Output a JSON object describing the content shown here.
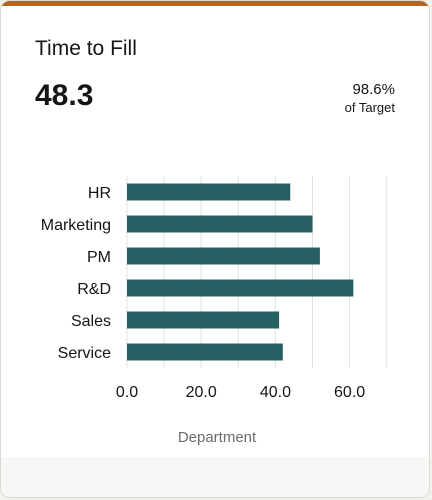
{
  "card": {
    "title": "Time to Fill",
    "metric_value": "48.3",
    "target_percent": "98.6%",
    "target_label": "of Target"
  },
  "colors": {
    "accent": "#b4641f",
    "bar": "#255f63",
    "text": "#161513",
    "axis_title": "#6f6b66"
  },
  "chart_data": {
    "type": "bar",
    "orientation": "horizontal",
    "categories": [
      "HR",
      "Marketing",
      "PM",
      "R&D",
      "Sales",
      "Service"
    ],
    "values": [
      44,
      50,
      52,
      61,
      41,
      42
    ],
    "x_ticks": [
      "0.0",
      "20.0",
      "40.0",
      "60.0"
    ],
    "xlim": [
      0,
      70
    ],
    "xlabel": "Department",
    "grid": true
  }
}
